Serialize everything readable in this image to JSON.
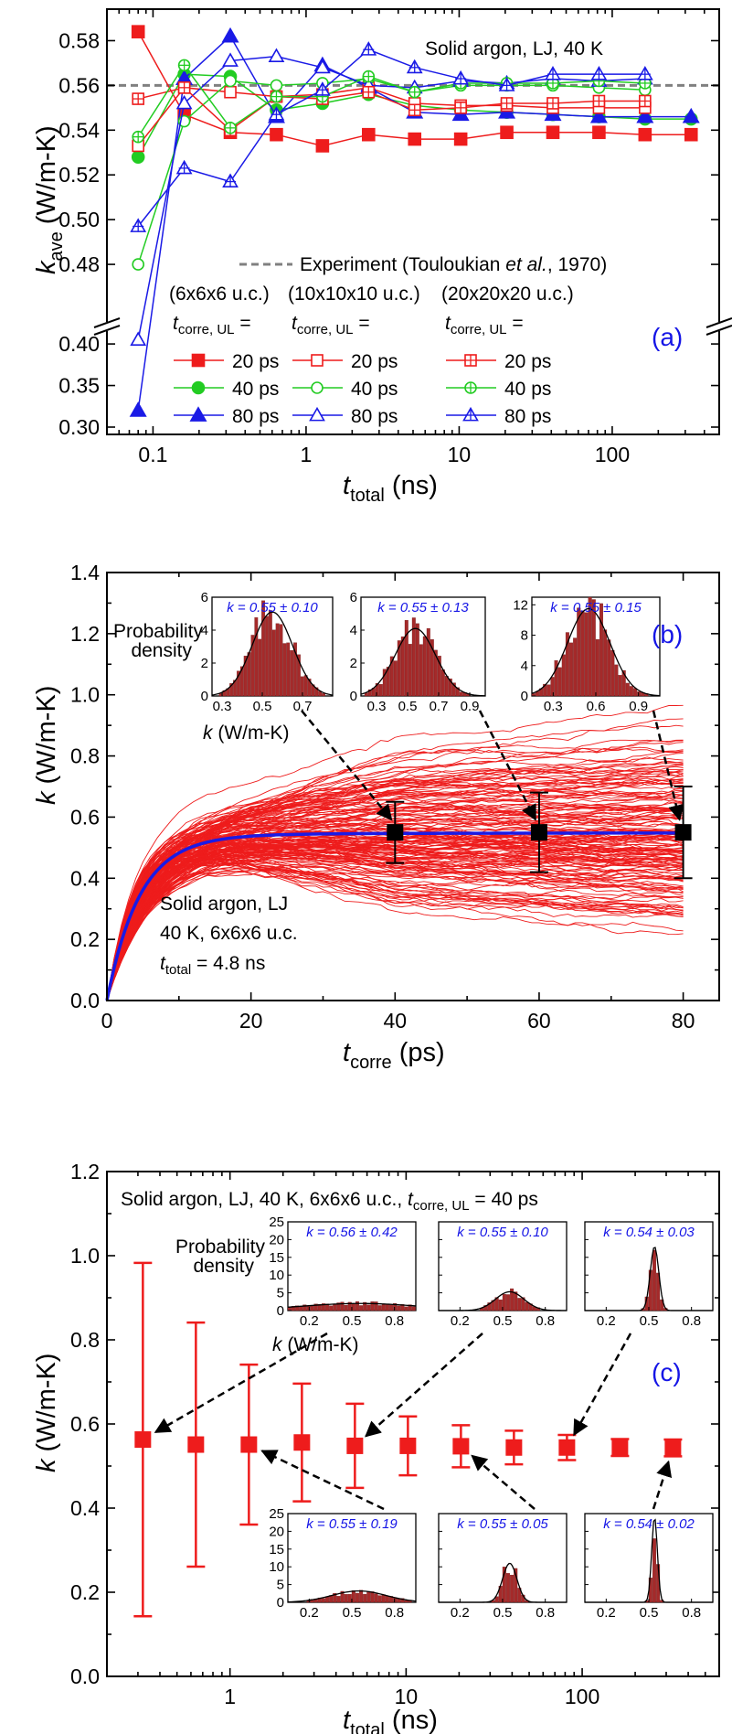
{
  "colors": {
    "red": "#ee1c1c",
    "green": "#22cc22",
    "blue": "#1a1ae6",
    "gray": "#808080",
    "bar": "#a52a2a",
    "label_blue": "#1515e6"
  },
  "chart_data": [
    {
      "type": "line",
      "panel": "(a)",
      "annotation": "Solid argon, LJ, 40 K",
      "ylabel_sym": "k",
      "ylabel_sub": "ave",
      "ylabel_unit": " (W/m-K)",
      "xlabel_sym": "t",
      "xlabel_sub": "total",
      "xlabel_unit": " (ns)",
      "xscale": "log",
      "xlim": [
        0.05,
        500
      ],
      "ylim_upper": [
        0.46,
        0.59
      ],
      "ylim_lower": [
        0.3,
        0.41
      ],
      "y_break": true,
      "xticks": [
        "0.1",
        "1",
        "10",
        "100"
      ],
      "yticks_upper": [
        "0.48",
        "0.50",
        "0.52",
        "0.54",
        "0.56",
        "0.58"
      ],
      "yticks_lower": [
        "0.30",
        "0.35",
        "0.40"
      ],
      "experiment": {
        "value": 0.56,
        "label_prefix": "Experiment (Touloukian ",
        "label_em": "et al.",
        "label_suffix": ", 1970)"
      },
      "group_headers": [
        "(6x6x6 u.c.)",
        "(10x10x10 u.c.)",
        "(20x20x20 u.c.)"
      ],
      "legend_title_sym": "t",
      "legend_title_sub": "corre, UL",
      "legend_title_eq": " =",
      "series": [
        {
          "name": "20 ps",
          "group": 0,
          "color": "red",
          "marker": "square",
          "filled": true,
          "x": [
            0.08,
            0.16,
            0.32,
            0.64,
            1.28,
            2.56,
            5.12,
            10.24,
            20.48,
            40.96,
            81.92,
            163.84,
            327.68
          ],
          "values": [
            0.584,
            0.547,
            0.539,
            0.538,
            0.533,
            0.538,
            0.536,
            0.536,
            0.539,
            0.539,
            0.539,
            0.538,
            0.538
          ]
        },
        {
          "name": "40 ps",
          "group": 0,
          "color": "green",
          "marker": "circle",
          "filled": true,
          "x": [
            0.08,
            0.16,
            0.32,
            0.64,
            1.28,
            2.56,
            5.12,
            10.24,
            20.48,
            40.96,
            81.92,
            163.84,
            327.68
          ],
          "values": [
            0.528,
            0.565,
            0.564,
            0.549,
            0.552,
            0.556,
            0.551,
            0.549,
            0.548,
            0.547,
            0.546,
            0.545,
            0.545
          ]
        },
        {
          "name": "80 ps",
          "group": 0,
          "color": "blue",
          "marker": "triangle",
          "filled": true,
          "x": [
            0.08,
            0.16,
            0.32,
            0.64,
            1.28,
            2.56,
            5.12,
            10.24,
            20.48,
            40.96,
            81.92,
            163.84,
            327.68
          ],
          "values": [
            0.32,
            0.563,
            0.582,
            0.546,
            0.569,
            0.559,
            0.548,
            0.547,
            0.548,
            0.547,
            0.546,
            0.546,
            0.546
          ]
        },
        {
          "name": "20 ps",
          "group": 1,
          "color": "red",
          "marker": "square",
          "filled": false,
          "x": [
            0.08,
            0.16,
            0.32,
            0.64,
            1.28,
            2.56,
            5.12,
            10.24,
            20.48,
            40.96,
            81.92,
            163.84
          ],
          "values": [
            0.533,
            0.559,
            0.557,
            0.555,
            0.556,
            0.559,
            0.552,
            0.551,
            0.551,
            0.55,
            0.55,
            0.55
          ]
        },
        {
          "name": "40 ps",
          "group": 1,
          "color": "green",
          "marker": "circle",
          "filled": false,
          "x": [
            0.08,
            0.16,
            0.32,
            0.64,
            1.28,
            2.56,
            5.12,
            10.24,
            20.48,
            40.96,
            81.92,
            163.84
          ],
          "values": [
            0.48,
            0.544,
            0.562,
            0.56,
            0.561,
            0.563,
            0.557,
            0.56,
            0.56,
            0.56,
            0.559,
            0.558
          ]
        },
        {
          "name": "80 ps",
          "group": 1,
          "color": "blue",
          "marker": "triangle",
          "filled": false,
          "x": [
            0.08,
            0.16,
            0.32,
            0.64,
            1.28,
            2.56,
            5.12,
            10.24,
            20.48,
            40.96,
            81.92,
            163.84
          ],
          "values": [
            0.405,
            0.552,
            0.571,
            0.573,
            0.568,
            0.56,
            0.559,
            0.562,
            0.561,
            0.563,
            0.562,
            0.563
          ]
        },
        {
          "name": "20 ps",
          "group": 2,
          "color": "red",
          "marker": "squareplus",
          "filled": false,
          "x": [
            0.08,
            0.16,
            0.32,
            0.64,
            1.28,
            2.56,
            5.12,
            10.24,
            20.48,
            40.96,
            81.92,
            163.84
          ],
          "values": [
            0.554,
            0.559,
            0.54,
            0.555,
            0.554,
            0.557,
            0.549,
            0.55,
            0.552,
            0.552,
            0.553,
            0.553
          ]
        },
        {
          "name": "40 ps",
          "group": 2,
          "color": "green",
          "marker": "circleplus",
          "filled": false,
          "x": [
            0.08,
            0.16,
            0.32,
            0.64,
            1.28,
            2.56,
            5.12,
            10.24,
            20.48,
            40.96,
            81.92,
            163.84
          ],
          "values": [
            0.537,
            0.569,
            0.541,
            0.555,
            0.555,
            0.564,
            0.557,
            0.561,
            0.561,
            0.561,
            0.562,
            0.561
          ]
        },
        {
          "name": "80 ps",
          "group": 2,
          "color": "blue",
          "marker": "triangleplus",
          "filled": false,
          "x": [
            0.08,
            0.16,
            0.32,
            0.64,
            1.28,
            2.56,
            5.12,
            10.24,
            20.48,
            40.96,
            81.92,
            163.84
          ],
          "values": [
            0.497,
            0.523,
            0.517,
            0.547,
            0.558,
            0.576,
            0.568,
            0.563,
            0.56,
            0.565,
            0.565,
            0.565
          ]
        }
      ]
    },
    {
      "type": "line",
      "panel": "(b)",
      "annotation_lines": [
        "Solid argon, LJ",
        "40 K, 6x6x6 u.c."
      ],
      "annotation_t_sym": "t",
      "annotation_t_sub": "total",
      "annotation_t_val": " = 4.8 ns",
      "ylabel_sym": "k",
      "ylabel_unit": " (W/m-K)",
      "xlabel_sym": "t",
      "xlabel_sub": "corre",
      "xlabel_unit": " (ps)",
      "xlim": [
        0,
        85
      ],
      "ylim": [
        0,
        1.4
      ],
      "xticks": [
        "0",
        "20",
        "40",
        "60",
        "80"
      ],
      "yticks": [
        "0.0",
        "0.2",
        "0.4",
        "0.6",
        "0.8",
        "1.0",
        "1.2",
        "1.4"
      ],
      "red_curves": {
        "count": 170,
        "min_plateau": 0.19,
        "max_plateau": 1.01,
        "tau_ps": 5
      },
      "mean_curve": {
        "color": "blue",
        "plateau": 0.548,
        "tau_ps": 4.5
      },
      "points": [
        {
          "x": 40,
          "y": 0.55,
          "err": 0.1,
          "label": "k = 0.55 ± 0.10"
        },
        {
          "x": 60,
          "y": 0.55,
          "err": 0.13,
          "label": "k = 0.55 ± 0.13"
        },
        {
          "x": 80,
          "y": 0.55,
          "err": 0.15,
          "label": "k = 0.55 ± 0.15"
        }
      ],
      "insets": [
        {
          "label": "k = 0.55 ± 0.10",
          "xticks": [
            "0.3",
            "0.5",
            "0.7"
          ],
          "xlim": [
            0.25,
            0.85
          ],
          "yticks": [
            "0",
            "2",
            "4",
            "6"
          ],
          "ymax": 6,
          "mean": 0.55,
          "sd": 0.1,
          "peak": 5.1
        },
        {
          "label": "k = 0.55 ± 0.13",
          "xticks": [
            "0.3",
            "0.5",
            "0.7",
            "0.9"
          ],
          "xlim": [
            0.2,
            1.0
          ],
          "yticks": [
            "0",
            "2",
            "4",
            "6"
          ],
          "ymax": 6,
          "mean": 0.55,
          "sd": 0.13,
          "peak": 4.1
        },
        {
          "label": "k = 0.55 ± 0.15",
          "xticks": [
            "0.3",
            "0.6",
            "0.9"
          ],
          "xlim": [
            0.15,
            1.05
          ],
          "yticks": [
            "0",
            "4",
            "8",
            "12"
          ],
          "ymax": 13,
          "mean": 0.55,
          "sd": 0.15,
          "peak": 11.5
        }
      ],
      "inset_ylabel": [
        "Probability",
        "density"
      ],
      "inset_xlabel_sym": "k",
      "inset_xlabel_unit": " (W/m-K)"
    },
    {
      "type": "scatter",
      "panel": "(c)",
      "title_prefix": "Solid argon, LJ, 40 K, 6x6x6 u.c., ",
      "title_t_sym": "t",
      "title_t_sub": "corre, UL",
      "title_t_val": " = 40 ps",
      "ylabel_sym": "k",
      "ylabel_unit": " (W/m-K)",
      "xlabel_sym": "t",
      "xlabel_sub": "total",
      "xlabel_unit": " (ns)",
      "xscale": "log",
      "xlim": [
        0.2,
        600
      ],
      "ylim": [
        0,
        1.2
      ],
      "xticks": [
        "1",
        "10",
        "100"
      ],
      "yticks": [
        "0.0",
        "0.2",
        "0.4",
        "0.6",
        "0.8",
        "1.0",
        "1.2"
      ],
      "x": [
        0.32,
        0.64,
        1.28,
        2.56,
        5.12,
        10.24,
        20.48,
        40.96,
        81.92,
        163.84,
        327.68
      ],
      "values": [
        0.563,
        0.551,
        0.551,
        0.556,
        0.548,
        0.548,
        0.547,
        0.544,
        0.544,
        0.544,
        0.543
      ],
      "errors": [
        0.42,
        0.29,
        0.19,
        0.14,
        0.1,
        0.07,
        0.05,
        0.04,
        0.03,
        0.02,
        0.02
      ],
      "insets": [
        {
          "label": "k = 0.56 ± 0.42",
          "mean": 0.56,
          "sd": 0.42,
          "peak": 2.0,
          "arrow_to_index": 0
        },
        {
          "label": "k = 0.55 ± 0.10",
          "mean": 0.55,
          "sd": 0.1,
          "peak": 5.3,
          "arrow_to_index": 4
        },
        {
          "label": "k = 0.54 ± 0.03",
          "mean": 0.54,
          "sd": 0.03,
          "peak": 18.0,
          "arrow_to_index": 8
        },
        {
          "label": "k = 0.55 ± 0.19",
          "mean": 0.55,
          "sd": 0.19,
          "peak": 3.2,
          "arrow_to_index": 2
        },
        {
          "label": "k = 0.55 ± 0.05",
          "mean": 0.55,
          "sd": 0.05,
          "peak": 11.0,
          "arrow_to_index": 6
        },
        {
          "label": "k = 0.54 ± 0.02",
          "mean": 0.54,
          "sd": 0.02,
          "peak": 24.0,
          "arrow_to_index": 10
        }
      ],
      "inset_xticks": [
        "0.2",
        "0.5",
        "0.8"
      ],
      "inset_xlim": [
        0.05,
        0.95
      ],
      "inset_yticks": [
        "0",
        "5",
        "10",
        "15",
        "20",
        "25"
      ],
      "inset_ymax": 25,
      "inset_ylabel": [
        "Probability",
        "density"
      ],
      "inset_xlabel_sym": "k",
      "inset_xlabel_unit": " (W/m-K)"
    }
  ]
}
